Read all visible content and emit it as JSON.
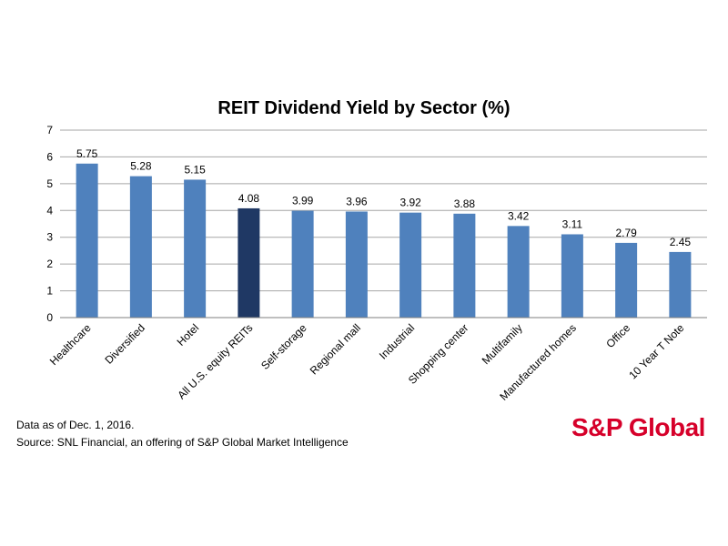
{
  "chart_data": {
    "type": "bar",
    "title": "REIT Dividend Yield by Sector (%)",
    "xlabel": "",
    "ylabel": "",
    "ylim": [
      0,
      7
    ],
    "yticks": [
      "0",
      "1",
      "2",
      "3",
      "4",
      "5",
      "6",
      "7"
    ],
    "grid": true,
    "categories": [
      "Healthcare",
      "Diversified",
      "Hotel",
      "All U.S. equity REITs",
      "Self-storage",
      "Regional mall",
      "Industrial",
      "Shopping center",
      "Multifamily",
      "Manufactured homes",
      "Office",
      "10 Year T Note"
    ],
    "values": [
      5.75,
      5.28,
      5.15,
      4.08,
      3.99,
      3.96,
      3.92,
      3.88,
      3.42,
      3.11,
      2.79,
      2.45
    ],
    "value_labels": [
      "5.75",
      "5.28",
      "5.15",
      "4.08",
      "3.99",
      "3.96",
      "3.92",
      "3.88",
      "3.42",
      "3.11",
      "2.79",
      "2.45"
    ],
    "colors": {
      "bar": "#4f81bd",
      "highlight_bar": "#1f3864",
      "highlight_category": "All U.S. equity REITs",
      "grid": "#a6a6a6"
    }
  },
  "notes": {
    "date": "Data as of Dec. 1, 2016.",
    "source": "Source: SNL Financial, an offering of S&P Global Market Intelligence"
  },
  "logo": {
    "text": "S&P Global",
    "color": "#d6002a"
  }
}
